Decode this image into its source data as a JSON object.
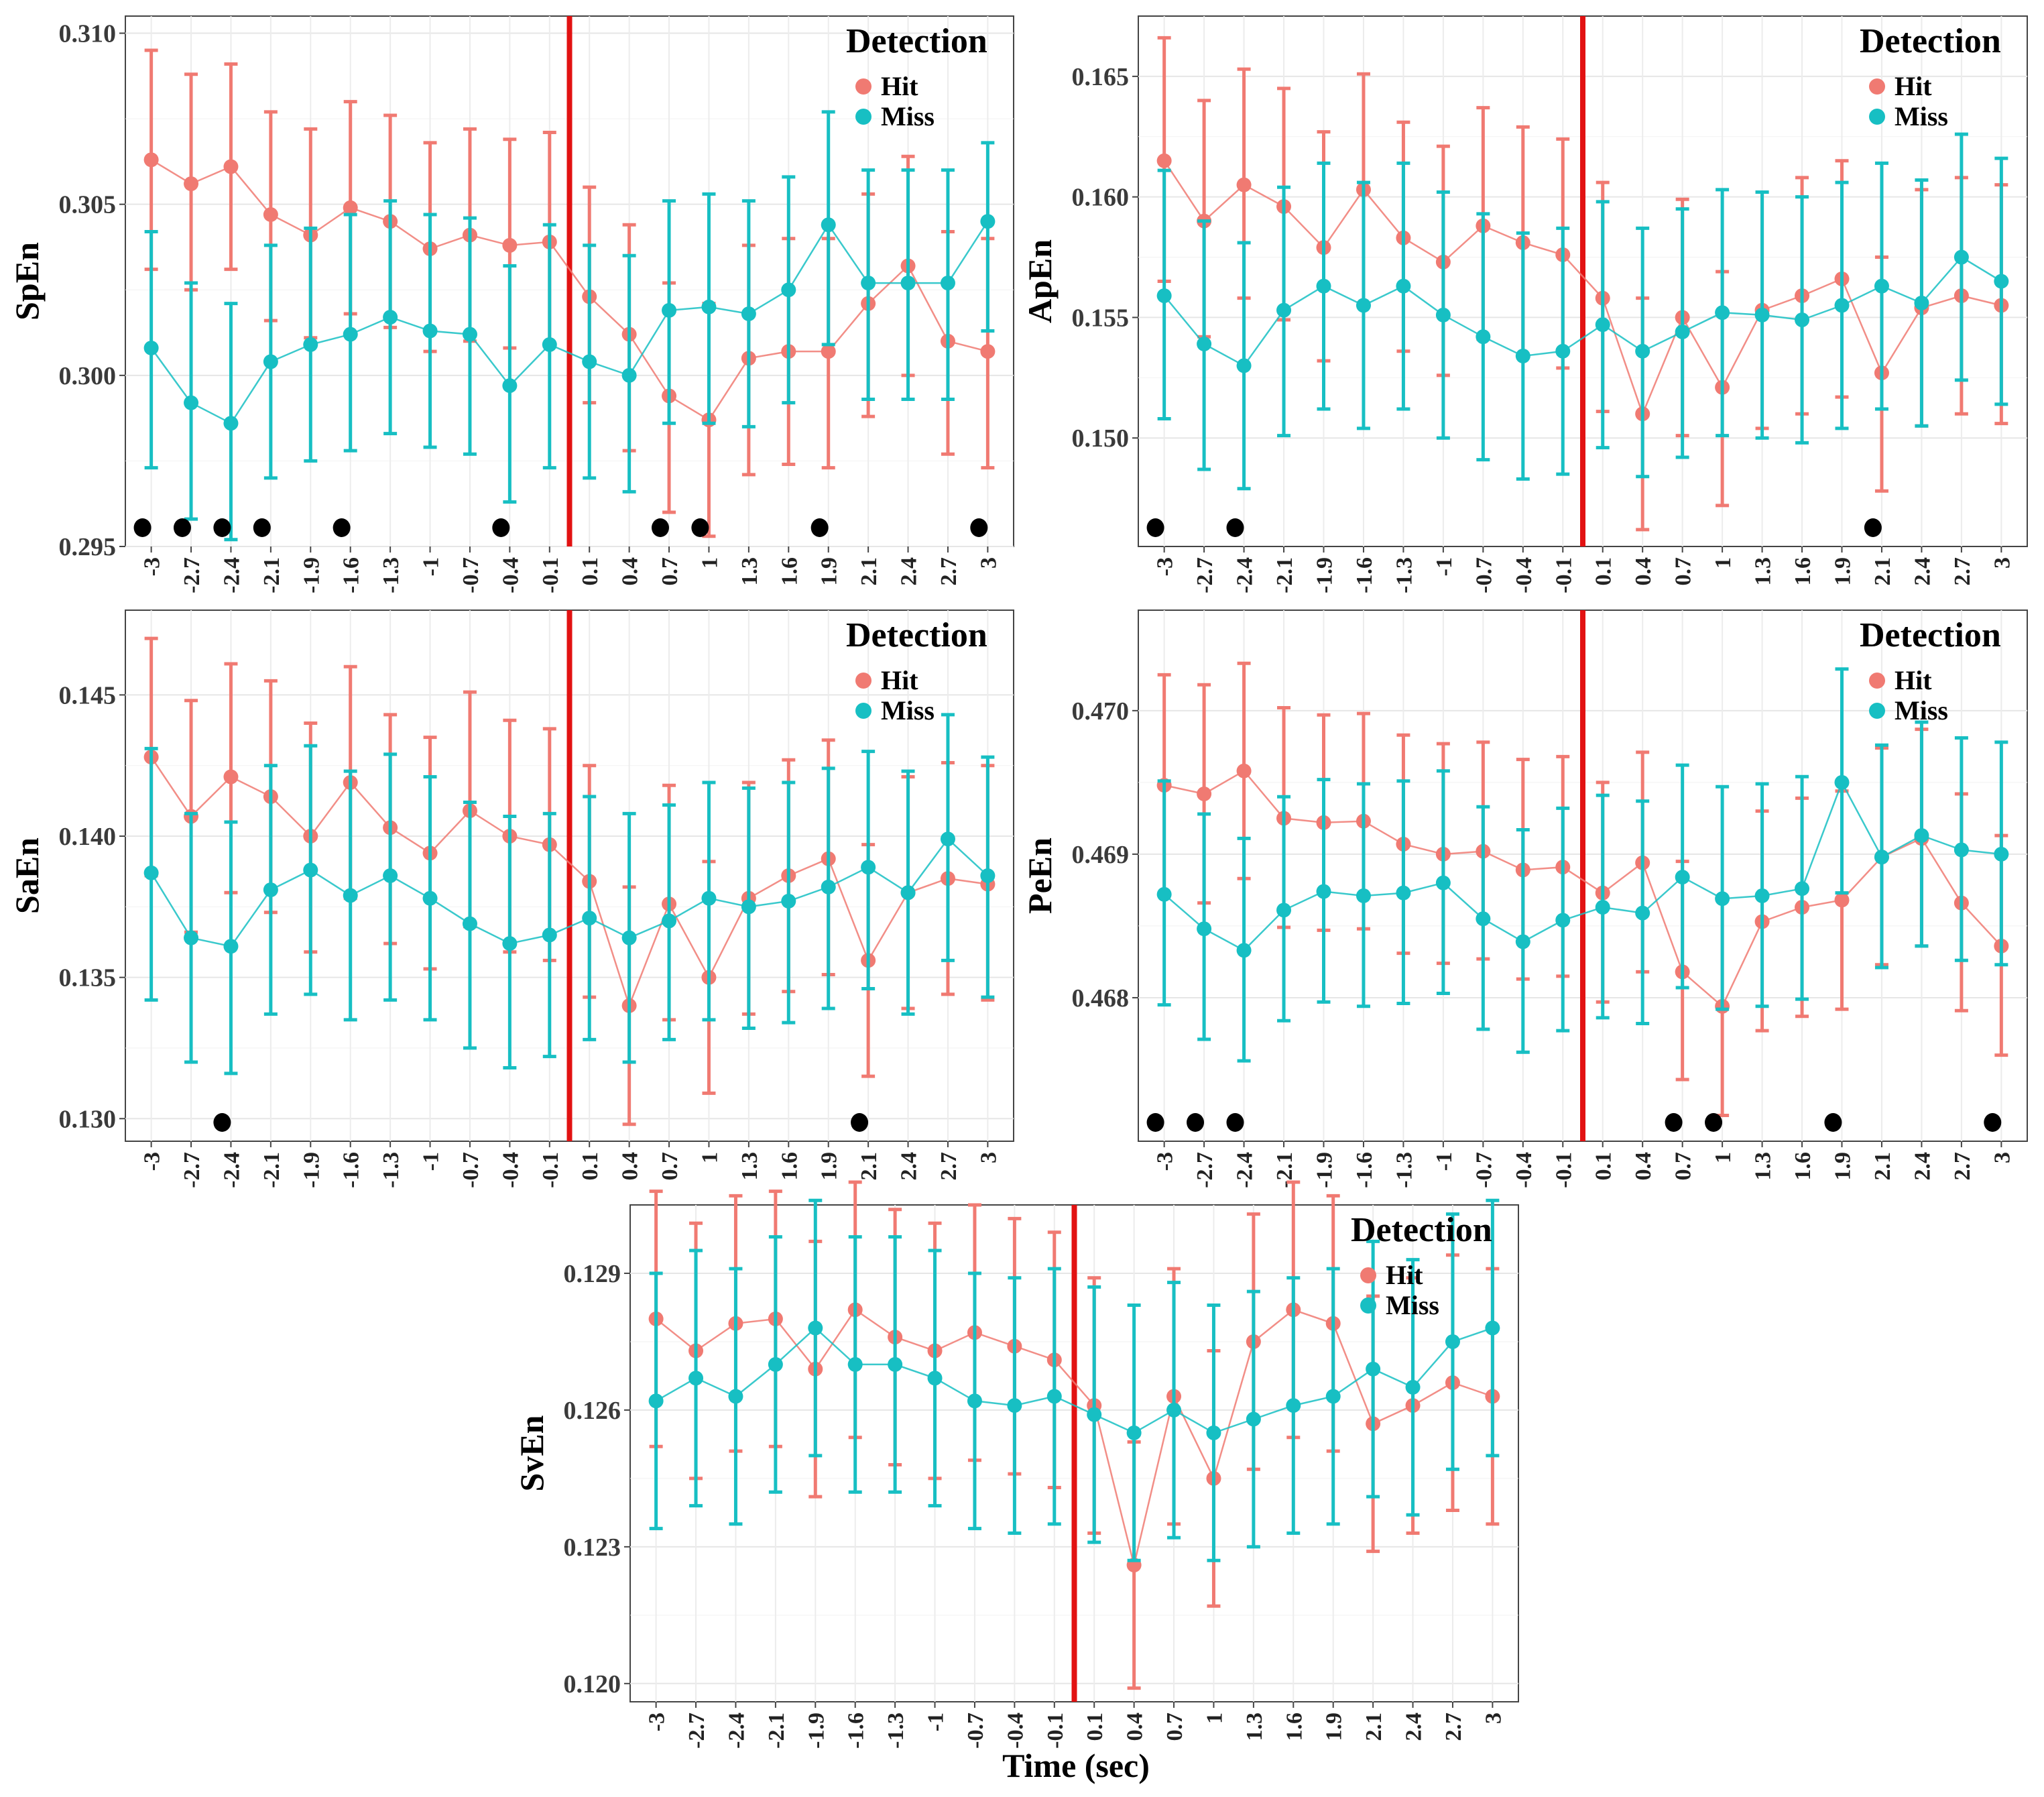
{
  "figure": {
    "x_axis_title": "Time (sec)",
    "legend_title": "Detection",
    "colors": {
      "hit": "#F07A72",
      "miss": "#17BFC3",
      "onset_line": "#E21212",
      "marker": "#000000"
    }
  },
  "chart_data": [
    {
      "type": "line",
      "ylabel": "SpEn",
      "ylim": [
        0.295,
        0.3105
      ],
      "yticks": [
        0.295,
        0.3,
        0.305,
        0.31
      ],
      "ytick_labels": [
        "0.295",
        "0.300",
        "0.305",
        "0.310"
      ],
      "categories": [
        "-3",
        "-2.7",
        "-2.4",
        "-2.1",
        "-1.9",
        "-1.6",
        "-1.3",
        "-1",
        "-0.7",
        "-0.4",
        "-0.1",
        "0.1",
        "0.4",
        "0.7",
        "1",
        "1.3",
        "1.6",
        "1.9",
        "2.1",
        "2.4",
        "2.7",
        "3"
      ],
      "series": [
        {
          "name": "Hit",
          "values": [
            0.3063,
            0.3056,
            0.3061,
            0.3047,
            0.3041,
            0.3049,
            0.3045,
            0.3037,
            0.3041,
            0.3038,
            0.3039,
            0.3023,
            0.3012,
            0.2994,
            0.2987,
            0.3005,
            0.3007,
            0.3007,
            0.3021,
            0.3032,
            0.301,
            0.3007
          ],
          "lower": [
            0.3031,
            0.3025,
            0.3031,
            0.3016,
            0.3011,
            0.3018,
            0.3014,
            0.3007,
            0.301,
            0.3008,
            0.3009,
            0.2992,
            0.2978,
            0.296,
            0.2953,
            0.2971,
            0.2974,
            0.2973,
            0.2988,
            0.3,
            0.2977,
            0.2973
          ],
          "upper": [
            0.3095,
            0.3088,
            0.3091,
            0.3077,
            0.3072,
            0.308,
            0.3076,
            0.3068,
            0.3072,
            0.3069,
            0.3071,
            0.3055,
            0.3044,
            0.3027,
            0.3021,
            0.3038,
            0.304,
            0.304,
            0.3053,
            0.3064,
            0.3042,
            0.304
          ]
        },
        {
          "name": "Miss",
          "values": [
            0.3008,
            0.2992,
            0.2986,
            0.3004,
            0.3009,
            0.3012,
            0.3017,
            0.3013,
            0.3012,
            0.2997,
            0.3009,
            0.3004,
            0.3,
            0.3019,
            0.302,
            0.3018,
            0.3025,
            0.3044,
            0.3027,
            0.3027,
            0.3027,
            0.3045
          ],
          "lower": [
            0.2973,
            0.2958,
            0.2952,
            0.297,
            0.2975,
            0.2978,
            0.2983,
            0.2979,
            0.2977,
            0.2963,
            0.2973,
            0.297,
            0.2966,
            0.2986,
            0.2986,
            0.2985,
            0.2992,
            0.3009,
            0.2993,
            0.2993,
            0.2993,
            0.3013
          ],
          "upper": [
            0.3042,
            0.3027,
            0.3021,
            0.3038,
            0.3043,
            0.3047,
            0.3051,
            0.3047,
            0.3046,
            0.3032,
            0.3044,
            0.3038,
            0.3035,
            0.3051,
            0.3053,
            0.3051,
            0.3058,
            0.3077,
            0.306,
            0.306,
            0.306,
            0.3068
          ]
        }
      ],
      "significance_markers": [
        0,
        1,
        2,
        3,
        5,
        9,
        13,
        14,
        17,
        21
      ]
    },
    {
      "type": "line",
      "ylabel": "ApEn",
      "ylim": [
        0.1455,
        0.1675
      ],
      "yticks": [
        0.15,
        0.155,
        0.16,
        0.165
      ],
      "ytick_labels": [
        "0.150",
        "0.155",
        "0.160",
        "0.165"
      ],
      "categories": [
        "-3",
        "-2.7",
        "-2.4",
        "-2.1",
        "-1.9",
        "-1.6",
        "-1.3",
        "-1",
        "-0.7",
        "-0.4",
        "-0.1",
        "0.1",
        "0.4",
        "0.7",
        "1",
        "1.3",
        "1.6",
        "1.9",
        "2.1",
        "2.4",
        "2.7",
        "3"
      ],
      "series": [
        {
          "name": "Hit",
          "values": [
            0.1615,
            0.159,
            0.1605,
            0.1596,
            0.1579,
            0.1603,
            0.1583,
            0.1573,
            0.1588,
            0.1581,
            0.1576,
            0.1558,
            0.151,
            0.155,
            0.1521,
            0.1553,
            0.1559,
            0.1566,
            0.1527,
            0.1554,
            0.1559,
            0.1555
          ],
          "lower": [
            0.1565,
            0.1542,
            0.1558,
            0.1549,
            0.1532,
            0.1556,
            0.1536,
            0.1526,
            0.1541,
            0.1534,
            0.1529,
            0.1511,
            0.1462,
            0.1501,
            0.1472,
            0.1504,
            0.151,
            0.1517,
            0.1478,
            0.1505,
            0.151,
            0.1506
          ],
          "upper": [
            0.1666,
            0.164,
            0.1653,
            0.1645,
            0.1627,
            0.1651,
            0.1631,
            0.1621,
            0.1637,
            0.1629,
            0.1624,
            0.1606,
            0.1558,
            0.1599,
            0.1569,
            0.1602,
            0.1608,
            0.1615,
            0.1575,
            0.1603,
            0.1608,
            0.1605
          ]
        },
        {
          "name": "Miss",
          "values": [
            0.1559,
            0.1539,
            0.153,
            0.1553,
            0.1563,
            0.1555,
            0.1563,
            0.1551,
            0.1542,
            0.1534,
            0.1536,
            0.1547,
            0.1536,
            0.1544,
            0.1552,
            0.1551,
            0.1549,
            0.1555,
            0.1563,
            0.1556,
            0.1575,
            0.1565
          ],
          "lower": [
            0.1508,
            0.1487,
            0.1479,
            0.1501,
            0.1512,
            0.1504,
            0.1512,
            0.15,
            0.1491,
            0.1483,
            0.1485,
            0.1496,
            0.1484,
            0.1492,
            0.1501,
            0.15,
            0.1498,
            0.1504,
            0.1512,
            0.1505,
            0.1524,
            0.1514
          ],
          "upper": [
            0.1611,
            0.159,
            0.1581,
            0.1604,
            0.1614,
            0.1606,
            0.1614,
            0.1602,
            0.1593,
            0.1585,
            0.1587,
            0.1598,
            0.1587,
            0.1595,
            0.1603,
            0.1602,
            0.16,
            0.1606,
            0.1614,
            0.1607,
            0.1626,
            0.1616
          ]
        }
      ],
      "significance_markers": [
        0,
        2,
        18
      ]
    },
    {
      "type": "line",
      "ylabel": "SaEn",
      "ylim": [
        0.1292,
        0.148
      ],
      "yticks": [
        0.13,
        0.135,
        0.14,
        0.145
      ],
      "ytick_labels": [
        "0.130",
        "0.135",
        "0.140",
        "0.145"
      ],
      "categories": [
        "-3",
        "-2.7",
        "-2.4",
        "-2.1",
        "-1.9",
        "-1.6",
        "-1.3",
        "-1",
        "-0.7",
        "-0.4",
        "-0.1",
        "0.1",
        "0.4",
        "0.7",
        "1",
        "1.3",
        "1.6",
        "1.9",
        "2.1",
        "2.4",
        "2.7",
        "3"
      ],
      "series": [
        {
          "name": "Hit",
          "values": [
            0.1428,
            0.1407,
            0.1421,
            0.1414,
            0.14,
            0.1419,
            0.1403,
            0.1394,
            0.1409,
            0.14,
            0.1397,
            0.1384,
            0.134,
            0.1376,
            0.135,
            0.1378,
            0.1386,
            0.1392,
            0.1356,
            0.138,
            0.1385,
            0.1383
          ],
          "lower": [
            0.1386,
            0.1366,
            0.138,
            0.1373,
            0.1359,
            0.1378,
            0.1362,
            0.1353,
            0.1368,
            0.1359,
            0.1356,
            0.1343,
            0.1298,
            0.1335,
            0.1309,
            0.1337,
            0.1345,
            0.1351,
            0.1315,
            0.1339,
            0.1344,
            0.1342
          ],
          "upper": [
            0.147,
            0.1448,
            0.1461,
            0.1455,
            0.144,
            0.146,
            0.1443,
            0.1435,
            0.1451,
            0.1441,
            0.1438,
            0.1425,
            0.1382,
            0.1418,
            0.1391,
            0.1419,
            0.1427,
            0.1434,
            0.1397,
            0.1421,
            0.1426,
            0.1425
          ]
        },
        {
          "name": "Miss",
          "values": [
            0.1387,
            0.1364,
            0.1361,
            0.1381,
            0.1388,
            0.1379,
            0.1386,
            0.1378,
            0.1369,
            0.1362,
            0.1365,
            0.1371,
            0.1364,
            0.137,
            0.1378,
            0.1375,
            0.1377,
            0.1382,
            0.1389,
            0.138,
            0.1399,
            0.1386
          ],
          "lower": [
            0.1342,
            0.132,
            0.1316,
            0.1337,
            0.1344,
            0.1335,
            0.1342,
            0.1335,
            0.1325,
            0.1318,
            0.1322,
            0.1328,
            0.132,
            0.1328,
            0.1335,
            0.1332,
            0.1334,
            0.1339,
            0.1346,
            0.1337,
            0.1356,
            0.1343
          ],
          "upper": [
            0.1431,
            0.1408,
            0.1405,
            0.1425,
            0.1432,
            0.1423,
            0.1429,
            0.1421,
            0.1412,
            0.1407,
            0.1408,
            0.1414,
            0.1408,
            0.1411,
            0.1419,
            0.1417,
            0.1419,
            0.1424,
            0.143,
            0.1423,
            0.1443,
            0.1428
          ]
        }
      ],
      "significance_markers": [
        2,
        18
      ]
    },
    {
      "type": "line",
      "ylabel": "PeEn",
      "ylim": [
        0.467,
        0.4707
      ],
      "yticks": [
        0.468,
        0.469,
        0.47
      ],
      "ytick_labels": [
        "0.468",
        "0.469",
        "0.470"
      ],
      "categories": [
        "-3",
        "-2.7",
        "-2.4",
        "-2.1",
        "-1.9",
        "-1.6",
        "-1.3",
        "-1",
        "-0.7",
        "-0.4",
        "-0.1",
        "0.1",
        "0.4",
        "0.7",
        "1",
        "1.3",
        "1.6",
        "1.9",
        "2.1",
        "2.4",
        "2.7",
        "3"
      ],
      "series": [
        {
          "name": "Hit",
          "values": [
            0.46948,
            0.46942,
            0.46958,
            0.46925,
            0.46922,
            0.46923,
            0.46907,
            0.469,
            0.46902,
            0.46889,
            0.46891,
            0.46873,
            0.46894,
            0.46818,
            0.46794,
            0.46853,
            0.46863,
            0.46868,
            0.46898,
            0.46911,
            0.46866,
            0.46836
          ],
          "lower": [
            0.46872,
            0.46866,
            0.46883,
            0.46849,
            0.46847,
            0.46848,
            0.46831,
            0.46824,
            0.46827,
            0.46813,
            0.46815,
            0.46797,
            0.46818,
            0.46743,
            0.46718,
            0.46777,
            0.46787,
            0.46792,
            0.46823,
            0.46836,
            0.46791,
            0.4676
          ],
          "upper": [
            0.47025,
            0.47018,
            0.47033,
            0.47002,
            0.46997,
            0.46998,
            0.46983,
            0.46977,
            0.46978,
            0.46966,
            0.46968,
            0.4695,
            0.46971,
            0.46895,
            0.4687,
            0.4693,
            0.46939,
            0.46944,
            0.46974,
            0.46987,
            0.46942,
            0.46913
          ]
        },
        {
          "name": "Miss",
          "values": [
            0.46872,
            0.46848,
            0.46833,
            0.46861,
            0.46874,
            0.46871,
            0.46873,
            0.4688,
            0.46855,
            0.46839,
            0.46854,
            0.46863,
            0.46859,
            0.46884,
            0.46869,
            0.46871,
            0.46876,
            0.4695,
            0.46898,
            0.46913,
            0.46903,
            0.469
          ],
          "lower": [
            0.46795,
            0.46771,
            0.46756,
            0.46784,
            0.46797,
            0.46794,
            0.46796,
            0.46803,
            0.46778,
            0.46762,
            0.46777,
            0.46786,
            0.46782,
            0.46807,
            0.46792,
            0.46794,
            0.46799,
            0.46873,
            0.46821,
            0.46836,
            0.46826,
            0.46823
          ],
          "upper": [
            0.46951,
            0.46928,
            0.46911,
            0.4694,
            0.46952,
            0.46949,
            0.46951,
            0.46958,
            0.46933,
            0.46917,
            0.46932,
            0.46941,
            0.46937,
            0.46962,
            0.46947,
            0.46949,
            0.46954,
            0.47029,
            0.46976,
            0.46992,
            0.46981,
            0.46978
          ]
        }
      ],
      "significance_markers": [
        0,
        1,
        2,
        13,
        14,
        17,
        21
      ]
    },
    {
      "type": "line",
      "ylabel": "SvEn",
      "xlabel": "Time (sec)",
      "ylim": [
        0.1196,
        0.1305
      ],
      "yticks": [
        0.12,
        0.123,
        0.126,
        0.129
      ],
      "ytick_labels": [
        "0.120",
        "0.123",
        "0.126",
        "0.129"
      ],
      "categories": [
        "-3",
        "-2.7",
        "-2.4",
        "-2.1",
        "-1.9",
        "-1.6",
        "-1.3",
        "-1",
        "-0.7",
        "-0.4",
        "-0.1",
        "0.1",
        "0.4",
        "0.7",
        "1",
        "1.3",
        "1.6",
        "1.9",
        "2.1",
        "2.4",
        "2.7",
        "3"
      ],
      "series": [
        {
          "name": "Hit",
          "values": [
            0.128,
            0.1273,
            0.1279,
            0.128,
            0.1269,
            0.1282,
            0.1276,
            0.1273,
            0.1277,
            0.1274,
            0.1271,
            0.1261,
            0.1226,
            0.1263,
            0.1245,
            0.1275,
            0.1282,
            0.1279,
            0.1257,
            0.1261,
            0.1266,
            0.1263
          ],
          "lower": [
            0.1252,
            0.1245,
            0.1251,
            0.1252,
            0.1241,
            0.1254,
            0.1248,
            0.1245,
            0.1249,
            0.1246,
            0.1243,
            0.1233,
            0.1199,
            0.1235,
            0.1217,
            0.1247,
            0.1254,
            0.1251,
            0.1229,
            0.1233,
            0.1238,
            0.1235
          ],
          "upper": [
            0.1308,
            0.1301,
            0.1307,
            0.1308,
            0.1297,
            0.131,
            0.1304,
            0.1301,
            0.1305,
            0.1302,
            0.1299,
            0.1289,
            0.1253,
            0.1291,
            0.1273,
            0.1303,
            0.131,
            0.1307,
            0.1285,
            0.1289,
            0.1294,
            0.1291
          ]
        },
        {
          "name": "Miss",
          "values": [
            0.1262,
            0.1267,
            0.1263,
            0.127,
            0.1278,
            0.127,
            0.127,
            0.1267,
            0.1262,
            0.1261,
            0.1263,
            0.1259,
            0.1255,
            0.126,
            0.1255,
            0.1258,
            0.1261,
            0.1263,
            0.1269,
            0.1265,
            0.1275,
            0.1278
          ],
          "lower": [
            0.1234,
            0.1239,
            0.1235,
            0.1242,
            0.125,
            0.1242,
            0.1242,
            0.1239,
            0.1234,
            0.1233,
            0.1235,
            0.1231,
            0.1227,
            0.1232,
            0.1227,
            0.123,
            0.1233,
            0.1235,
            0.1241,
            0.1237,
            0.1247,
            0.125
          ],
          "upper": [
            0.129,
            0.1295,
            0.1291,
            0.1298,
            0.1306,
            0.1298,
            0.1298,
            0.1295,
            0.129,
            0.1289,
            0.1291,
            0.1287,
            0.1283,
            0.1288,
            0.1283,
            0.1286,
            0.1289,
            0.1291,
            0.1297,
            0.1293,
            0.1303,
            0.1306
          ]
        }
      ],
      "significance_markers": []
    }
  ]
}
